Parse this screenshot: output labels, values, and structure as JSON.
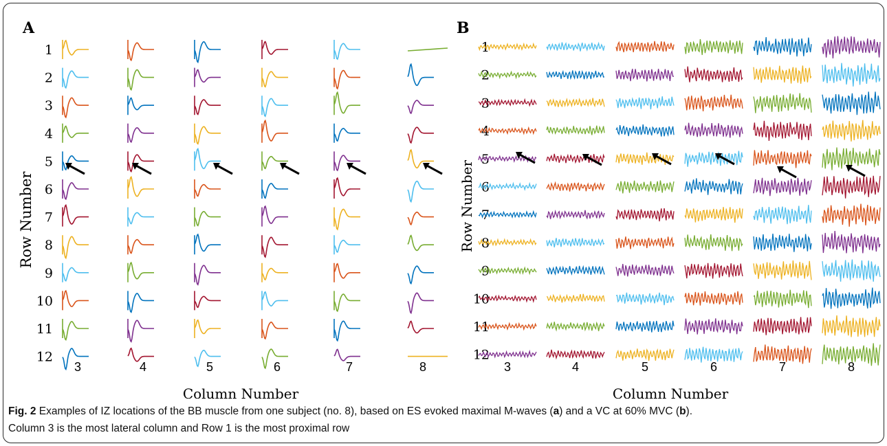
{
  "figure": {
    "panels": [
      {
        "letter": "A",
        "ylabel": "Row  Number",
        "xlabel": "Column Number",
        "rows": [
          "1",
          "2",
          "3",
          "4",
          "5",
          "6",
          "7",
          "8",
          "9",
          "10",
          "11",
          "12"
        ],
        "columns": [
          "3",
          "4",
          "5",
          "6",
          "7",
          "8"
        ],
        "signal": "M-wave"
      },
      {
        "letter": "B",
        "ylabel": "Row Number",
        "xlabel": "Column Number",
        "rows": [
          "1",
          "2",
          "3",
          "4",
          "5",
          "6",
          "7",
          "8",
          "9",
          "10",
          "11",
          "12"
        ],
        "columns": [
          "3",
          "4",
          "5",
          "6",
          "7",
          "8"
        ],
        "signal": "EMG"
      }
    ],
    "colors": {
      "yellow": "#EDB120",
      "lightblue": "#4DBEEE",
      "orange": "#D95319",
      "green": "#77AC30",
      "blue": "#0072BD",
      "purple": "#7E2F8E",
      "red": "#A2142F"
    }
  },
  "caption": {
    "fig_label": "Fig. 2",
    "part1": " Examples of IZ locations of the BB muscle from one subject (no. 8), based on ES evoked maximal M-waves (",
    "a": "a",
    "part2": ") and a VC at 60% MVC (",
    "b": "b",
    "part3": ").",
    "line2": "Column 3 is the most lateral column and Row 1 is the most proximal row"
  }
}
